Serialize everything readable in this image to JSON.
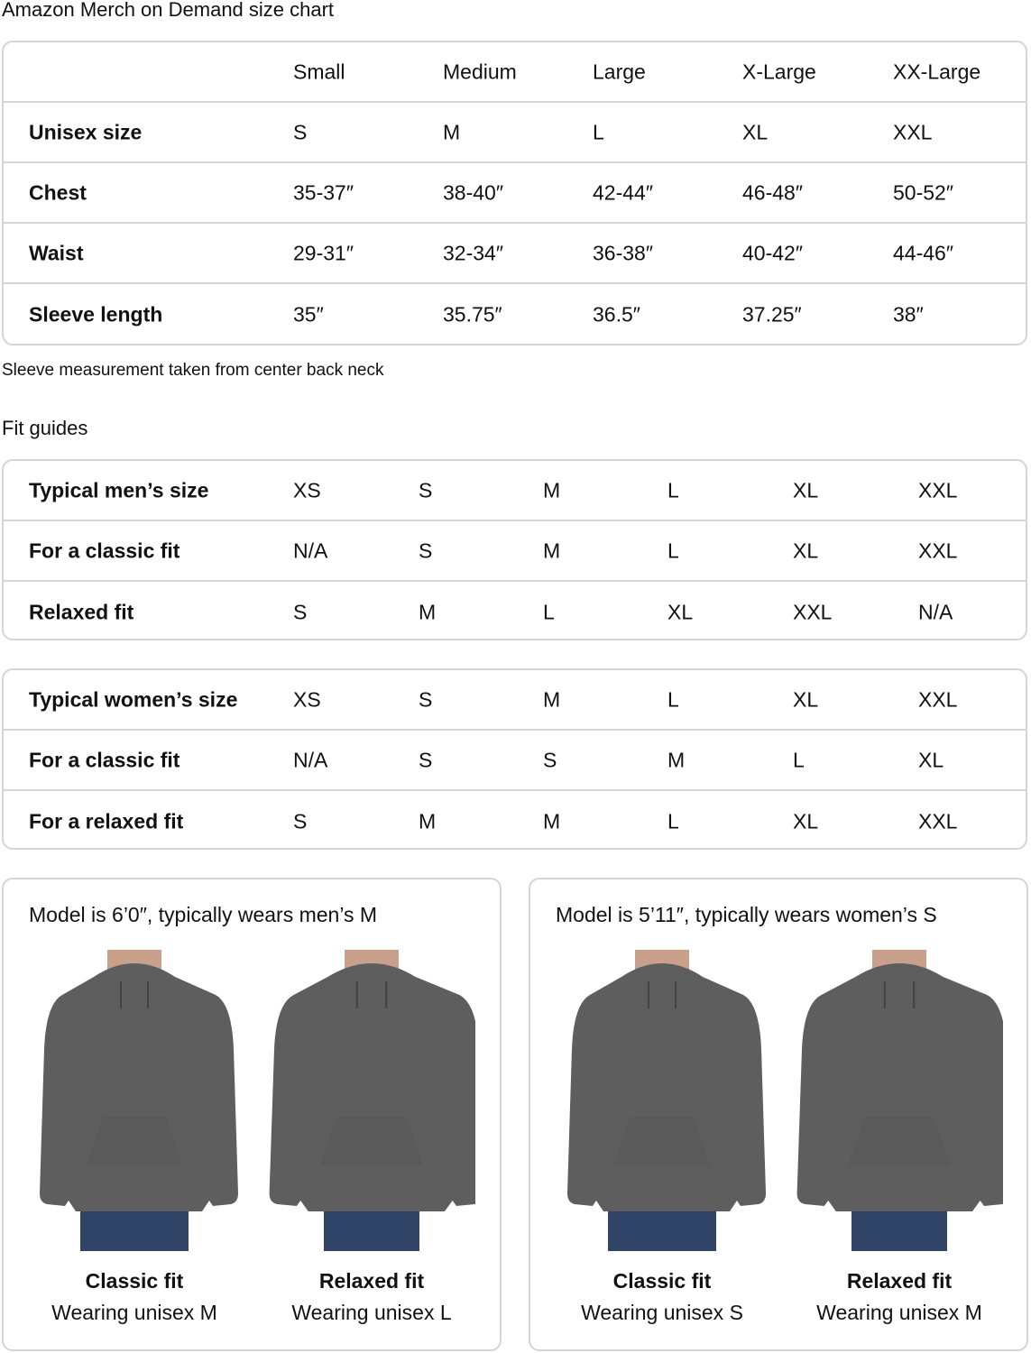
{
  "title": "Amazon Merch on Demand size chart",
  "size_chart": {
    "headers": [
      "",
      "Small",
      "Medium",
      "Large",
      "X-Large",
      "XX-Large"
    ],
    "rows": [
      [
        "Unisex size",
        "S",
        "M",
        "L",
        "XL",
        "XXL"
      ],
      [
        "Chest",
        "35-37″",
        "38-40″",
        "42-44″",
        "46-48″",
        "50-52″"
      ],
      [
        "Waist",
        "29-31″",
        "32-34″",
        "36-38″",
        "40-42″",
        "44-46″"
      ],
      [
        "Sleeve length",
        "35″",
        "35.75″",
        "36.5″",
        "37.25″",
        "38″"
      ]
    ]
  },
  "note": "Sleeve measurement taken from center back neck",
  "fit_title": "Fit guides",
  "mens_fit": [
    [
      "Typical men’s size",
      "XS",
      "S",
      "M",
      "L",
      "XL",
      "XXL"
    ],
    [
      "For a classic fit",
      "N/A",
      "S",
      "M",
      "L",
      "XL",
      "XXL"
    ],
    [
      "Relaxed fit",
      "S",
      "M",
      "L",
      "XL",
      "XXL",
      "N/A"
    ]
  ],
  "womens_fit": [
    [
      "Typical women’s size",
      "XS",
      "S",
      "M",
      "L",
      "XL",
      "XXL"
    ],
    [
      "For a classic fit",
      "N/A",
      "S",
      "S",
      "M",
      "L",
      "XL"
    ],
    [
      "For a relaxed fit",
      "S",
      "M",
      "M",
      "L",
      "XL",
      "XXL"
    ]
  ],
  "models": [
    {
      "title": "Model is 6’0″, typically wears men’s M",
      "photos": [
        {
          "fit": "Classic fit",
          "wearing": "Wearing unisex M"
        },
        {
          "fit": "Relaxed fit",
          "wearing": "Wearing unisex L"
        }
      ]
    },
    {
      "title": "Model is 5’11″, typically wears women’s S",
      "photos": [
        {
          "fit": "Classic fit",
          "wearing": "Wearing unisex S"
        },
        {
          "fit": "Relaxed fit",
          "wearing": "Wearing unisex M"
        }
      ]
    }
  ],
  "colors": {
    "hoodie": "#5e5e5e",
    "border": "#d5d5d5",
    "jeans": "#2f4466"
  }
}
